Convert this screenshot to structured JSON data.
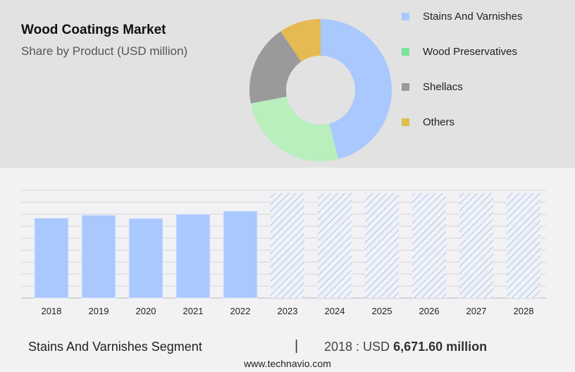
{
  "header": {
    "title": "Wood Coatings Market",
    "subtitle": "Share by Product (USD million)"
  },
  "chart_data": [
    {
      "type": "pie",
      "title": "Wood Coatings Market",
      "subtitle": "Share by Product (USD million)",
      "donut": true,
      "legend_position": "right",
      "labels": [
        "Stains And Varnishes",
        "Wood Preservatives",
        "Shellacs",
        "Others"
      ],
      "values": [
        46,
        26,
        18.5,
        9.5
      ],
      "colors": [
        "#a8c8fe",
        "#b8efbd",
        "#9a9a9a",
        "#e6ba52"
      ],
      "legend_colors": [
        "#a8c8fe",
        "#7ce39a",
        "#9a9a9a",
        "#dcc050"
      ]
    },
    {
      "type": "bar",
      "series_name": "Stains And Varnishes Segment",
      "categories": [
        "2018",
        "2019",
        "2020",
        "2021",
        "2022",
        "2023",
        "2024",
        "2025",
        "2026",
        "2027",
        "2028"
      ],
      "values": [
        6671.6,
        6920,
        6650,
        7000,
        7260,
        null,
        null,
        null,
        null,
        null,
        null
      ],
      "forecast": [
        false,
        false,
        false,
        false,
        false,
        true,
        true,
        true,
        true,
        true,
        true
      ],
      "ylim": [
        0,
        9000
      ],
      "grid": true,
      "color": "#a8c8fe"
    }
  ],
  "footer": {
    "segment": "Stains And Varnishes Segment",
    "separator": "|",
    "year_label": "2018 : USD",
    "value": "6,671.60 million",
    "site": "www.technavio.com"
  }
}
